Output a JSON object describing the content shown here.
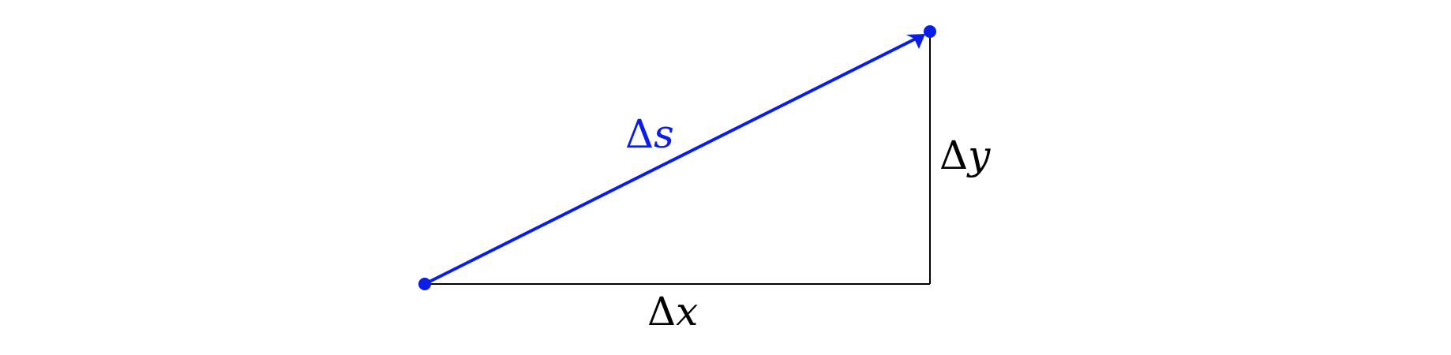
{
  "diagram": {
    "hypotenuse_label": {
      "delta": "Δ",
      "variable": "s"
    },
    "base_label": {
      "delta": "Δ",
      "variable": "x"
    },
    "height_label": {
      "delta": "Δ",
      "variable": "y"
    }
  },
  "colors": {
    "vector": "#0a1ee8",
    "legs": "#000000",
    "background": "#ffffff"
  }
}
